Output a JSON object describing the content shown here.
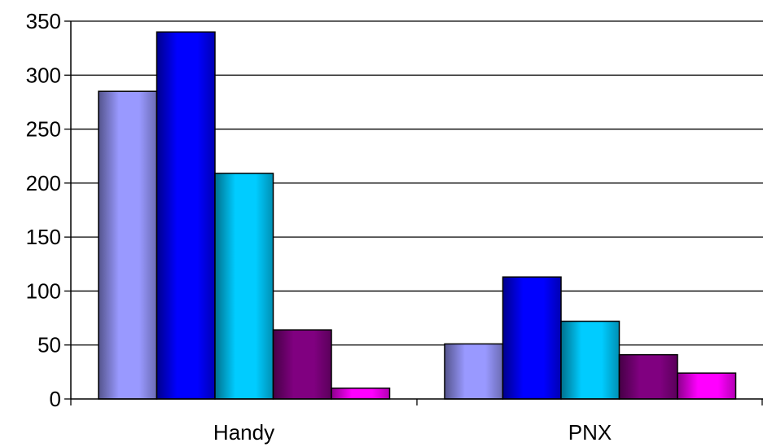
{
  "chart_data": {
    "type": "bar",
    "categories": [
      "Handy",
      "PNX"
    ],
    "series": [
      {
        "color": "#9999ff",
        "values": [
          285,
          51
        ]
      },
      {
        "color": "#0000ff",
        "values": [
          340,
          113
        ]
      },
      {
        "color": "#00ccff",
        "values": [
          209,
          72
        ]
      },
      {
        "color": "#800080",
        "values": [
          64,
          41
        ]
      },
      {
        "color": "#ff00ff",
        "values": [
          10,
          24
        ]
      }
    ],
    "ylim": [
      0,
      350
    ],
    "yticks": [
      0,
      50,
      100,
      150,
      200,
      250,
      300,
      350
    ],
    "grid": true,
    "legend": "none"
  }
}
